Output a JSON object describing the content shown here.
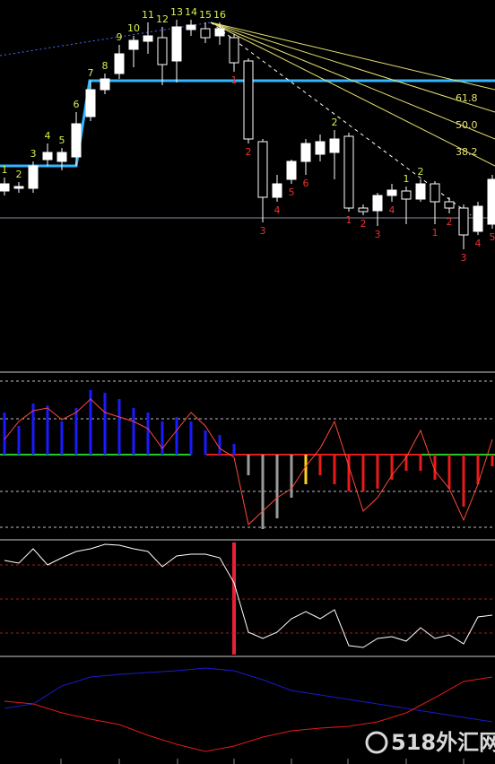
{
  "chart_data": [
    {
      "type": "candlestick",
      "open": [
        202,
        205,
        205,
        237,
        235,
        240,
        285,
        315,
        333,
        360,
        369,
        373,
        347,
        382,
        383,
        375,
        373,
        347,
        257,
        195,
        215,
        235,
        243,
        245,
        263,
        183,
        180,
        197,
        202,
        193,
        210,
        190,
        183,
        157,
        165
      ],
      "high": [
        217,
        212,
        235,
        255,
        250,
        290,
        325,
        333,
        365,
        375,
        390,
        385,
        393,
        393,
        390,
        390,
        377,
        350,
        260,
        220,
        237,
        260,
        265,
        270,
        267,
        187,
        200,
        210,
        207,
        215,
        213,
        195,
        187,
        190,
        220
      ],
      "low": [
        197,
        200,
        200,
        230,
        225,
        230,
        280,
        310,
        327,
        340,
        355,
        320,
        323,
        375,
        367,
        365,
        335,
        255,
        167,
        190,
        210,
        220,
        235,
        215,
        179,
        175,
        163,
        190,
        165,
        190,
        165,
        177,
        137,
        153,
        160
      ],
      "close": [
        210,
        207,
        230,
        245,
        245,
        277,
        315,
        327,
        355,
        370,
        375,
        343,
        385,
        387,
        373,
        383,
        345,
        260,
        195,
        210,
        235,
        255,
        257,
        260,
        183,
        179,
        197,
        203,
        193,
        210,
        190,
        183,
        153,
        185,
        215
      ],
      "labels": [
        "1",
        "2",
        "3",
        "4",
        "5",
        "6",
        "7",
        "8",
        "9",
        "10",
        "11",
        "12",
        "13",
        "14",
        "15",
        "16",
        "1",
        "2",
        "3",
        "4",
        "5",
        "6",
        null,
        "2",
        "1",
        "2",
        "3",
        "4",
        "1",
        "2",
        "1",
        "2",
        "3",
        "4",
        "5"
      ],
      "label_side": [
        "above",
        "above",
        "above",
        "above",
        "above",
        "above",
        "above",
        "above",
        "above",
        "above",
        "above",
        "above",
        "above",
        "above",
        "above",
        "above",
        "below",
        "below",
        "below",
        "below",
        "below",
        "below",
        null,
        "above",
        "below",
        "below",
        "below",
        "below",
        "above",
        "above",
        "below",
        "below",
        "below",
        "below",
        "below"
      ],
      "label_colors": {
        "above": "#d8ec4c",
        "below": "#e83232"
      },
      "up_color": "#ffffff",
      "down_color": "#000000",
      "annotations": [
        "61.8",
        "50.0",
        "38.2"
      ],
      "ylim": [
        0,
        415
      ]
    },
    {
      "type": "bar",
      "values": [
        47,
        32,
        57,
        55,
        37,
        52,
        72,
        69,
        62,
        52,
        47,
        37,
        42,
        37,
        27,
        22,
        12,
        -23,
        -83,
        -71,
        -48,
        -33,
        -23,
        -33,
        -41,
        -41,
        -38,
        -28,
        -18,
        -18,
        -28,
        -38,
        -58,
        -33,
        -13
      ],
      "colors": [
        "#1a1aff",
        "#1a1aff",
        "#1a1aff",
        "#1a1aff",
        "#1a1aff",
        "#1a1aff",
        "#1a1aff",
        "#1a1aff",
        "#1a1aff",
        "#1a1aff",
        "#1a1aff",
        "#1a1aff",
        "#1a1aff",
        "#1a1aff",
        "#1a1aff",
        "#1a1aff",
        "#1a1aff",
        "#9a9a9a",
        "#9a9a9a",
        "#9a9a9a",
        "#9a9a9a",
        "#ffd21a",
        "#e81a1a",
        "#e81a1a",
        "#e81a1a",
        "#e81a1a",
        "#e81a1a",
        "#e81a1a",
        "#e81a1a",
        "#e81a1a",
        "#e81a1a",
        "#e81a1a",
        "#e81a1a",
        "#e81a1a",
        "#e81a1a"
      ],
      "line": {
        "color": "#ff4a3a",
        "values": [
          17,
          37,
          49,
          52,
          39,
          47,
          62,
          47,
          42,
          37,
          29,
          7,
          27,
          47,
          32,
          7,
          -3,
          -78,
          -63,
          -48,
          -38,
          -13,
          7,
          37,
          -13,
          -63,
          -48,
          -23,
          -3,
          27,
          -18,
          -38,
          -73,
          -33,
          17
        ]
      },
      "grid_levels": [
        82,
        40,
        -41,
        -81
      ],
      "ylim": [
        -93,
        89
      ]
    },
    {
      "type": "line",
      "color": "#ffffff",
      "values": [
        105,
        102,
        118,
        100,
        108,
        115,
        118,
        123,
        122,
        118,
        115,
        98,
        110,
        112,
        112,
        108,
        80,
        25,
        18,
        25,
        40,
        48,
        40,
        50,
        10,
        8,
        18,
        20,
        15,
        30,
        18,
        22,
        12,
        42,
        44
      ],
      "grid_levels": [
        100,
        62,
        24
      ],
      "ylim": [
        0,
        125
      ]
    },
    {
      "type": "line",
      "series": [
        {
          "color": "#1a1acc",
          "values": [
            62,
            67,
            87,
            97,
            100,
            102,
            104,
            107,
            104,
            94,
            82,
            77,
            72,
            67,
            62,
            57,
            52,
            47
          ]
        },
        {
          "color": "#e01a1a",
          "values": [
            70,
            67,
            57,
            50,
            44,
            32,
            22,
            14,
            20,
            30,
            37,
            40,
            42,
            47,
            57,
            74,
            92,
            97
          ]
        }
      ],
      "ylim": [
        0,
        117
      ]
    }
  ],
  "watermark": "518外汇网"
}
